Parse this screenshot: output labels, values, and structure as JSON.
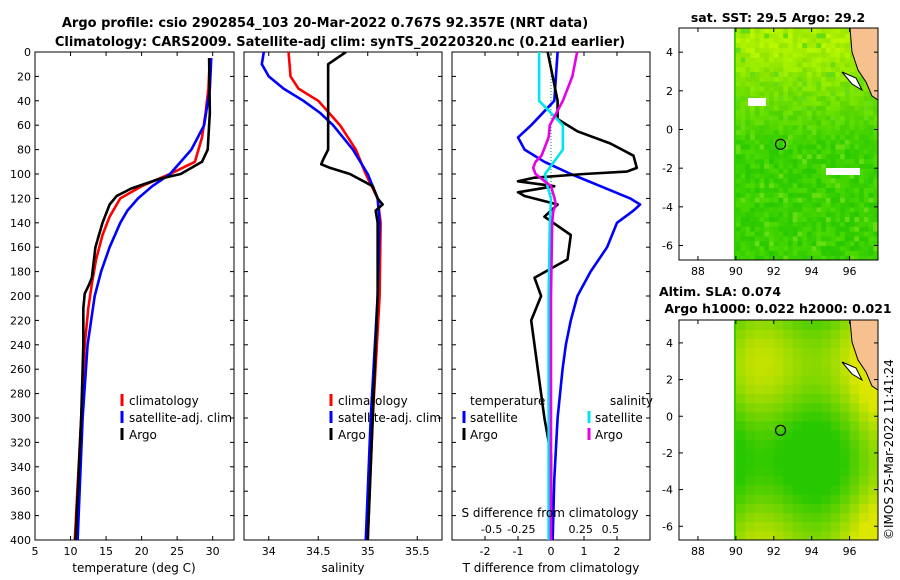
{
  "header": {
    "title_line1": "Argo profile: csio 2902854_103 20-Mar-2022 0.767S 92.357E (NRT data)",
    "title_line2": "Climatology: CARS2009. Satellite-adj clim: synTS_20220320.nc (0.21d earlier)"
  },
  "colors": {
    "climatology": "#ff0000",
    "satellite": "#0000ff",
    "argo": "#000000",
    "sal_satellite": "#00e5ee",
    "sal_argo": "#e600e6",
    "land": "#f7c08f",
    "sea": "#33cc00"
  },
  "chart_data": [
    {
      "type": "line",
      "id": "temperature",
      "xlabel": "temperature (deg C)",
      "ylabel": "",
      "xlim": [
        5,
        33
      ],
      "ylim": [
        0,
        400
      ],
      "y_inverted": true,
      "xticks": [
        5,
        10,
        15,
        20,
        25,
        30
      ],
      "yticks": [
        0,
        20,
        40,
        60,
        80,
        100,
        120,
        140,
        160,
        180,
        200,
        220,
        240,
        260,
        280,
        300,
        320,
        340,
        360,
        380,
        400
      ],
      "legend": [
        "climatology",
        "satellite-adj. clim",
        "Argo"
      ],
      "series": [
        {
          "name": "climatology",
          "color": "red",
          "y": [
            5,
            30,
            50,
            70,
            90,
            100,
            110,
            120,
            135,
            150,
            170,
            190,
            210,
            240,
            300,
            400
          ],
          "x": [
            29.6,
            29.4,
            29.0,
            28.5,
            27.5,
            24.0,
            20.0,
            17.0,
            15.5,
            14.5,
            13.6,
            13.0,
            12.5,
            12.0,
            11.5,
            10.6
          ]
        },
        {
          "name": "satellite-adj. clim",
          "color": "blue",
          "y": [
            5,
            30,
            60,
            80,
            100,
            110,
            120,
            130,
            140,
            160,
            180,
            200,
            240,
            300,
            400
          ],
          "x": [
            29.8,
            29.6,
            28.8,
            27.0,
            24.0,
            21.5,
            19.5,
            18.0,
            17.0,
            15.5,
            14.3,
            13.4,
            12.4,
            11.7,
            11.0
          ]
        },
        {
          "name": "Argo",
          "color": "black",
          "y": [
            5,
            50,
            80,
            90,
            100,
            104,
            108,
            112,
            118,
            125,
            140,
            160,
            185,
            192,
            198,
            210,
            240,
            300,
            400
          ],
          "x": [
            29.5,
            29.6,
            29.3,
            28.5,
            25.5,
            22.5,
            20.5,
            18.5,
            16.5,
            15.5,
            14.5,
            13.5,
            13.0,
            12.5,
            12.0,
            11.8,
            11.8,
            11.5,
            10.7
          ]
        }
      ]
    },
    {
      "type": "line",
      "id": "salinity",
      "xlabel": "salinity",
      "xlim": [
        33.75,
        35.75
      ],
      "ylim": [
        0,
        400
      ],
      "y_inverted": true,
      "xticks": [
        34,
        34.5,
        35,
        35.5
      ],
      "legend": [
        "climatology",
        "satellite-adj. clim",
        "Argo"
      ],
      "series": [
        {
          "name": "climatology",
          "color": "red",
          "y": [
            0,
            20,
            30,
            40,
            60,
            80,
            100,
            120,
            140,
            200,
            300,
            400
          ],
          "x": [
            34.2,
            34.22,
            34.3,
            34.5,
            34.72,
            34.88,
            34.98,
            35.1,
            35.13,
            35.12,
            35.05,
            35.0
          ]
        },
        {
          "name": "satellite-adj. clim",
          "color": "blue",
          "y": [
            0,
            10,
            20,
            30,
            40,
            50,
            60,
            80,
            100,
            120,
            140,
            200,
            300,
            400
          ],
          "x": [
            33.95,
            33.93,
            34.0,
            34.15,
            34.35,
            34.52,
            34.65,
            34.85,
            35.0,
            35.1,
            35.12,
            35.1,
            35.03,
            34.98
          ]
        },
        {
          "name": "Argo",
          "color": "black",
          "y": [
            0,
            10,
            60,
            80,
            88,
            92,
            95,
            100,
            110,
            120,
            125,
            130,
            140,
            200,
            300,
            400
          ],
          "x": [
            34.78,
            34.6,
            34.6,
            34.6,
            34.55,
            34.53,
            34.62,
            34.82,
            35.05,
            35.1,
            35.15,
            35.08,
            35.1,
            35.1,
            35.05,
            35.0
          ]
        }
      ]
    },
    {
      "type": "line",
      "id": "differences",
      "xlabel": "T difference from climatology",
      "top_axis_label": "S difference from climatology",
      "xlim": [
        -3,
        3
      ],
      "ylim": [
        0,
        400
      ],
      "y_inverted": true,
      "xticks": [
        -2,
        -1,
        0,
        1,
        2
      ],
      "top_xticks": [
        "-0.5",
        "-0.25",
        "0",
        "0.25",
        "0.5"
      ],
      "legend_groups": [
        {
          "heading": "temperature",
          "items": [
            "satellite",
            "Argo"
          ]
        },
        {
          "heading": "salinity",
          "items": [
            "satellite",
            "Argo"
          ]
        }
      ],
      "series": [
        {
          "name": "temperature satellite",
          "color": "blue",
          "y": [
            0,
            20,
            40,
            60,
            70,
            80,
            90,
            100,
            110,
            120,
            125,
            130,
            140,
            160,
            180,
            200,
            220,
            240,
            260,
            300,
            350,
            400
          ],
          "x": [
            0.2,
            0.15,
            0.1,
            -0.6,
            -1.0,
            -0.8,
            -0.2,
            0.6,
            1.5,
            2.4,
            2.7,
            2.5,
            2.0,
            1.7,
            1.2,
            0.8,
            0.6,
            0.45,
            0.35,
            0.2,
            0.1,
            0.05
          ]
        },
        {
          "name": "temperature Argo",
          "color": "black",
          "y": [
            0,
            20,
            40,
            55,
            65,
            75,
            85,
            95,
            98,
            100,
            103,
            106,
            110,
            115,
            118,
            125,
            135,
            150,
            170,
            185,
            200,
            220,
            240,
            260,
            280,
            300,
            330,
            360,
            400
          ],
          "x": [
            -0.1,
            0.05,
            0.2,
            0.2,
            0.8,
            1.8,
            2.5,
            2.6,
            2.3,
            1.0,
            -0.5,
            -1.0,
            0.1,
            -1.0,
            -0.8,
            0.2,
            -0.2,
            0.6,
            0.5,
            -0.5,
            -0.3,
            -0.6,
            -0.5,
            -0.4,
            -0.3,
            -0.2,
            0.0,
            0.0,
            0.0
          ]
        },
        {
          "name": "salinity satellite",
          "color": "cyan",
          "y": [
            0,
            20,
            40,
            60,
            80,
            100,
            110,
            120,
            140,
            200,
            300,
            400
          ],
          "x": [
            -0.1,
            -0.1,
            -0.1,
            0.1,
            0.1,
            -0.05,
            -0.03,
            0.0,
            -0.01,
            -0.02,
            -0.02,
            -0.02
          ]
        },
        {
          "name": "salinity Argo",
          "color": "magenta",
          "y": [
            0,
            20,
            40,
            60,
            70,
            80,
            85,
            90,
            95,
            100,
            110,
            120,
            125,
            130,
            140,
            200,
            300,
            400
          ],
          "x": [
            0.22,
            0.18,
            0.1,
            -0.01,
            -0.02,
            -0.06,
            -0.08,
            -0.13,
            -0.15,
            -0.13,
            0.0,
            0.03,
            0.04,
            0.02,
            0.01,
            0.0,
            0.0,
            0.0
          ]
        }
      ]
    },
    {
      "type": "heatmap",
      "id": "sst_map",
      "title": "sat. SST: 29.5 Argo: 29.2",
      "xlim": [
        87,
        97.5
      ],
      "ylim": [
        -6.75,
        5.25
      ],
      "xticks": [
        88,
        90,
        92,
        94,
        96
      ],
      "yticks": [
        -6,
        -4,
        -2,
        0,
        2,
        4
      ],
      "data_x_range": [
        90,
        97.5
      ],
      "float_position": {
        "lon": 92.357,
        "lat": -0.767
      }
    },
    {
      "type": "heatmap",
      "id": "sla_map",
      "title": "Altim. SLA: 0.074",
      "subtitle": "Argo h1000: 0.022 h2000: 0.021",
      "xlim": [
        87,
        97.5
      ],
      "ylim": [
        -6.75,
        5.25
      ],
      "xticks": [
        88,
        90,
        92,
        94,
        96
      ],
      "yticks": [
        -6,
        -4,
        -2,
        0,
        2,
        4
      ],
      "data_x_range": [
        90,
        97.5
      ],
      "float_position": {
        "lon": 92.357,
        "lat": -0.767
      }
    }
  ],
  "footer": {
    "stamp": "©IMOS 25-Mar-2022 11:41:24"
  }
}
